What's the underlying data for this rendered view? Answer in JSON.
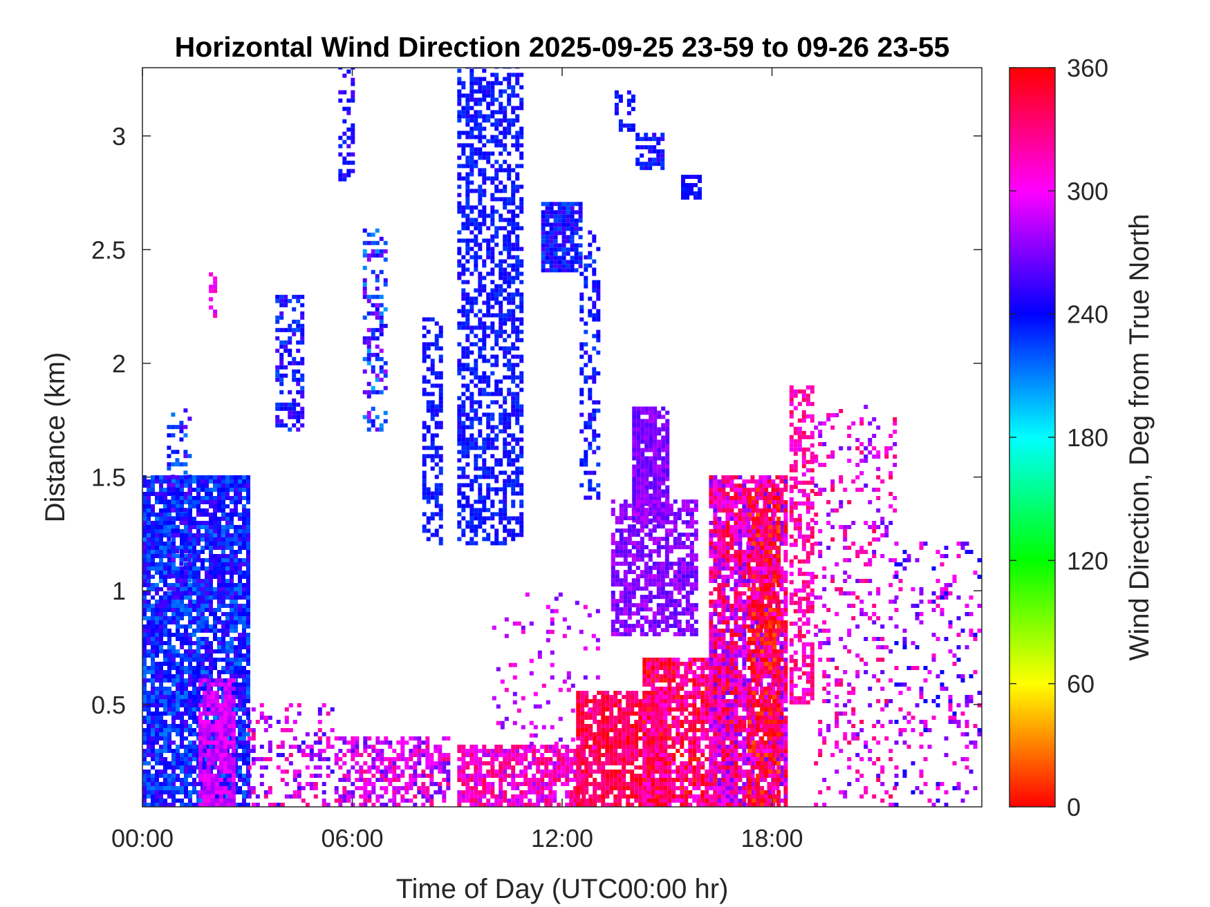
{
  "chart_data": {
    "type": "heatmap",
    "title": "Horizontal Wind Direction 2025-09-25 23-59 to 09-26 23-55",
    "xlabel": "Time of Day (UTC00:00 hr)",
    "ylabel": "Distance (km)",
    "xlim": [
      0,
      24
    ],
    "ylim": [
      0.05,
      3.3
    ],
    "x_ticks": [
      0,
      6,
      12,
      18
    ],
    "x_tick_labels": [
      "00:00",
      "06:00",
      "12:00",
      "18:00"
    ],
    "y_ticks": [
      0.5,
      1,
      1.5,
      2,
      2.5,
      3
    ],
    "y_tick_labels": [
      "0.5",
      "1",
      "1.5",
      "2",
      "2.5",
      "3"
    ],
    "colorbar": {
      "label": "Wind Direction, Deg from True North",
      "range": [
        0,
        360
      ],
      "ticks": [
        0,
        60,
        120,
        180,
        240,
        300,
        360
      ],
      "tick_labels": [
        "0",
        "60",
        "120",
        "180",
        "240",
        "300",
        "360"
      ],
      "colormap": [
        "#ff0000",
        "#ffff00",
        "#00ff00",
        "#00ffff",
        "#0000ff",
        "#ff00ff",
        "#ff0000"
      ]
    },
    "grid": false,
    "regions": [
      {
        "x": [
          0,
          3.0
        ],
        "y": [
          0.05,
          1.5
        ],
        "value": 235,
        "spread": 25,
        "density": 0.85
      },
      {
        "x": [
          1.6,
          2.6
        ],
        "y": [
          0.05,
          0.6
        ],
        "value": 290,
        "spread": 15,
        "density": 0.8
      },
      {
        "x": [
          0.7,
          1.3
        ],
        "y": [
          1.0,
          1.8
        ],
        "value": 240,
        "spread": 30,
        "density": 0.35
      },
      {
        "x": [
          1.9,
          2.1
        ],
        "y": [
          2.2,
          2.4
        ],
        "value": 300,
        "spread": 20,
        "density": 0.5
      },
      {
        "x": [
          3.8,
          4.6
        ],
        "y": [
          1.7,
          2.3
        ],
        "value": 240,
        "spread": 20,
        "density": 0.5
      },
      {
        "x": [
          5.6,
          6.0
        ],
        "y": [
          2.8,
          3.3
        ],
        "value": 245,
        "spread": 15,
        "density": 0.4
      },
      {
        "x": [
          6.3,
          6.9
        ],
        "y": [
          1.7,
          2.6
        ],
        "value": 240,
        "spread": 40,
        "density": 0.35
      },
      {
        "x": [
          8.0,
          8.5
        ],
        "y": [
          1.2,
          2.2
        ],
        "value": 238,
        "spread": 10,
        "density": 0.5
      },
      {
        "x": [
          9.0,
          10.8
        ],
        "y": [
          1.2,
          3.3
        ],
        "value": 238,
        "spread": 12,
        "density": 0.55
      },
      {
        "x": [
          11.4,
          12.5
        ],
        "y": [
          2.4,
          2.7
        ],
        "value": 240,
        "spread": 20,
        "density": 0.85
      },
      {
        "x": [
          12.5,
          13.0
        ],
        "y": [
          1.4,
          2.6
        ],
        "value": 238,
        "spread": 15,
        "density": 0.35
      },
      {
        "x": [
          13.5,
          14.0
        ],
        "y": [
          3.0,
          3.2
        ],
        "value": 240,
        "spread": 10,
        "density": 0.4
      },
      {
        "x": [
          14.1,
          14.9
        ],
        "y": [
          2.85,
          3.0
        ],
        "value": 240,
        "spread": 15,
        "density": 0.7
      },
      {
        "x": [
          15.4,
          15.9
        ],
        "y": [
          2.72,
          2.82
        ],
        "value": 240,
        "spread": 10,
        "density": 0.6
      },
      {
        "x": [
          14.0,
          15.0
        ],
        "y": [
          1.3,
          1.8
        ],
        "value": 270,
        "spread": 12,
        "density": 0.9
      },
      {
        "x": [
          13.4,
          15.8
        ],
        "y": [
          0.8,
          1.4
        ],
        "value": 272,
        "spread": 15,
        "density": 0.7
      },
      {
        "x": [
          5.6,
          8.8
        ],
        "y": [
          0.05,
          0.35
        ],
        "value": 295,
        "spread": 35,
        "density": 0.55
      },
      {
        "x": [
          9.0,
          12.6
        ],
        "y": [
          0.05,
          0.32
        ],
        "value": 310,
        "spread": 30,
        "density": 0.75
      },
      {
        "x": [
          12.4,
          15.0
        ],
        "y": [
          0.05,
          0.55
        ],
        "value": 340,
        "spread": 20,
        "density": 0.85
      },
      {
        "x": [
          14.3,
          17.0
        ],
        "y": [
          0.05,
          0.7
        ],
        "value": 335,
        "spread": 35,
        "density": 0.8
      },
      {
        "x": [
          16.2,
          18.4
        ],
        "y": [
          0.05,
          1.5
        ],
        "value": 310,
        "spread": 45,
        "density": 0.8
      },
      {
        "x": [
          17.3,
          18.2
        ],
        "y": [
          0.05,
          1.45
        ],
        "value": 350,
        "spread": 30,
        "density": 0.65
      },
      {
        "x": [
          18.5,
          19.2
        ],
        "y": [
          0.5,
          1.9
        ],
        "value": 318,
        "spread": 25,
        "density": 0.55
      },
      {
        "x": [
          19.2,
          21.5
        ],
        "y": [
          0.05,
          1.8
        ],
        "value": 300,
        "spread": 40,
        "density": 0.18
      },
      {
        "x": [
          21.5,
          24.0
        ],
        "y": [
          0.05,
          1.2
        ],
        "value": 280,
        "spread": 40,
        "density": 0.15
      },
      {
        "x": [
          3.0,
          5.6
        ],
        "y": [
          0.05,
          0.5
        ],
        "value": 290,
        "spread": 40,
        "density": 0.25
      },
      {
        "x": [
          10.0,
          13.0
        ],
        "y": [
          0.3,
          1.0
        ],
        "value": 290,
        "spread": 25,
        "density": 0.1
      }
    ]
  }
}
